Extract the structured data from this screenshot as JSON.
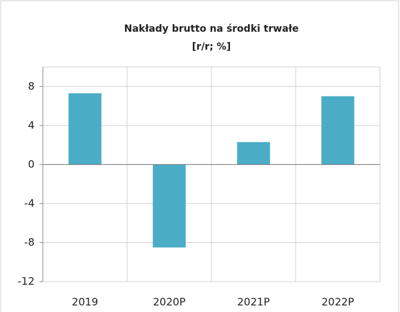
{
  "chart_data": {
    "type": "bar",
    "title": "Nakłady brutto na środki trwałe",
    "subtitle": "[r/r; %]",
    "categories": [
      "2019",
      "2020P",
      "2021P",
      "2022P"
    ],
    "values": [
      7.3,
      -8.5,
      2.3,
      7.0
    ],
    "color": "#4bacc6",
    "ylim": [
      -12,
      10
    ],
    "yticks": [
      -12,
      -8,
      -4,
      0,
      4,
      8
    ],
    "grid": true
  }
}
